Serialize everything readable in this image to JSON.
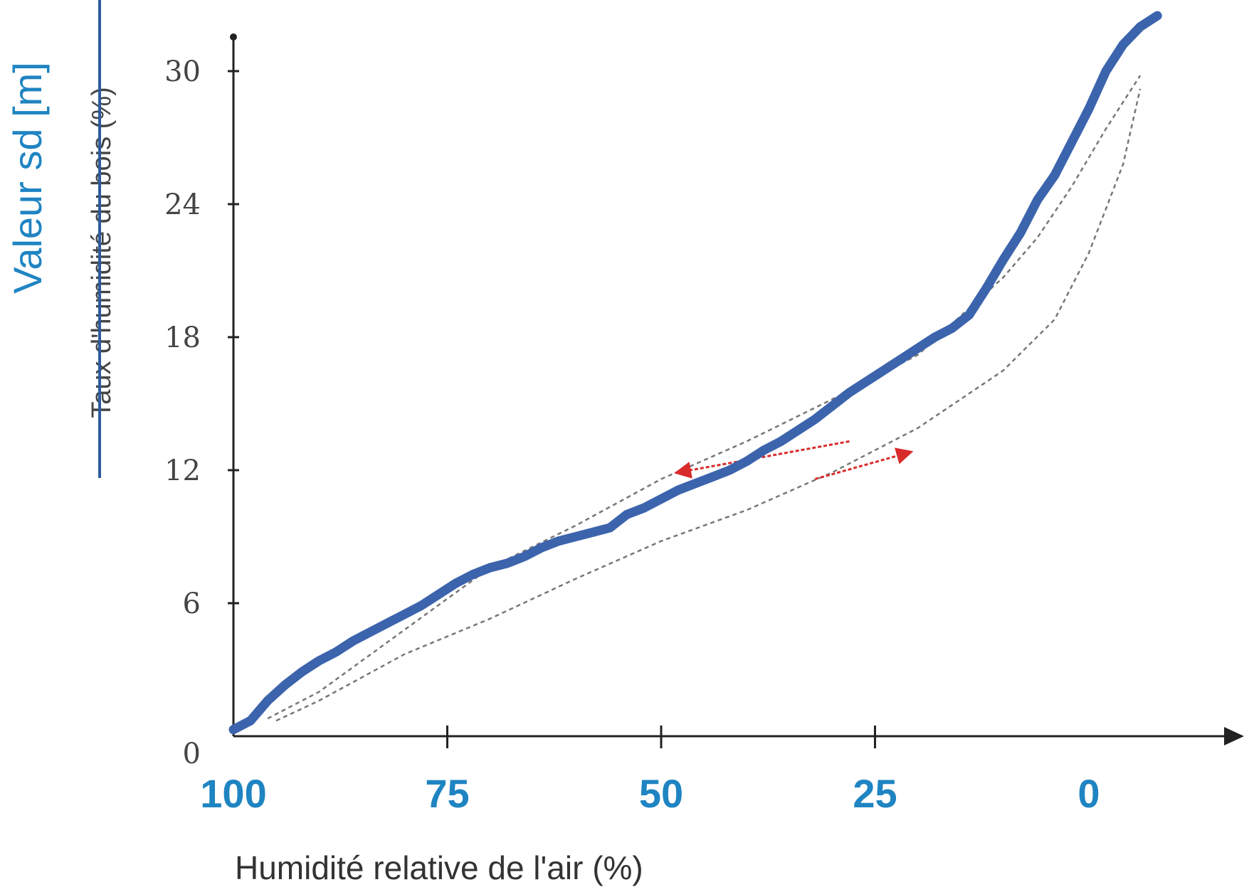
{
  "chart_data": {
    "type": "line",
    "ylabel": "Valeur sd [m]",
    "ylabel_struck": "Taux d'humidité du bois (%)",
    "xlabel": "Humidité relative de l'air (%)",
    "x_ticks": [
      "100",
      "75",
      "50",
      "25",
      "0"
    ],
    "y_ticks": [
      "0",
      "6",
      "12",
      "18",
      "24",
      "30"
    ],
    "x_range": [
      100,
      -15
    ],
    "y_range": [
      0,
      32
    ],
    "grid": false,
    "colors": {
      "main": "#3c64ad",
      "label": "#1f84c2",
      "strike": "#2e5a9e",
      "bounds": "#777777",
      "arrows": "#d92b2b",
      "axis": "#222222"
    },
    "series": [
      {
        "role": "main",
        "x": [
          100,
          98,
          96,
          94,
          92,
          90,
          88,
          86,
          84,
          82,
          80,
          78,
          76,
          74,
          72,
          70,
          68,
          66,
          64,
          62,
          60,
          58,
          56,
          54,
          52,
          50,
          48,
          46,
          44,
          42,
          40,
          38,
          36,
          34,
          32,
          30,
          28,
          26,
          24,
          22,
          20,
          18,
          16,
          14,
          12,
          10,
          8,
          6,
          4,
          2,
          0,
          -2,
          -4,
          -6,
          -8
        ],
        "y": [
          0.3,
          0.7,
          1.6,
          2.3,
          2.9,
          3.4,
          3.8,
          4.3,
          4.7,
          5.1,
          5.5,
          5.9,
          6.4,
          6.9,
          7.3,
          7.6,
          7.8,
          8.1,
          8.5,
          8.8,
          9.0,
          9.2,
          9.4,
          10.0,
          10.3,
          10.7,
          11.1,
          11.4,
          11.7,
          12.0,
          12.4,
          12.9,
          13.3,
          13.8,
          14.3,
          14.9,
          15.5,
          16.0,
          16.5,
          17.0,
          17.5,
          18.0,
          18.4,
          19.0,
          20.2,
          21.5,
          22.7,
          24.2,
          25.3,
          26.8,
          28.3,
          30.0,
          31.2,
          32.0,
          32.5
        ]
      },
      {
        "role": "upper-bound",
        "x": [
          96,
          90,
          80,
          70,
          60,
          50,
          40,
          30,
          20,
          10,
          6,
          2,
          -2,
          -6
        ],
        "y": [
          0.8,
          2.0,
          4.8,
          7.6,
          9.5,
          11.6,
          13.3,
          15.2,
          17.2,
          20.7,
          22.5,
          24.8,
          27.4,
          29.8
        ]
      },
      {
        "role": "lower-bound",
        "x": [
          95,
          90,
          80,
          70,
          60,
          50,
          40,
          30,
          20,
          10,
          4,
          0,
          -4,
          -6
        ],
        "y": [
          0.7,
          1.6,
          3.7,
          5.3,
          7.1,
          8.8,
          10.2,
          11.9,
          13.9,
          16.5,
          18.8,
          21.8,
          25.8,
          29.2
        ]
      }
    ],
    "annotations": [
      {
        "type": "arrow",
        "from": [
          28,
          13.3
        ],
        "to": [
          48,
          11.9
        ]
      },
      {
        "type": "arrow",
        "from": [
          32,
          11.6
        ],
        "to": [
          21,
          12.8
        ]
      }
    ]
  }
}
